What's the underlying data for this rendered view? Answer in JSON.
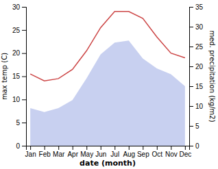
{
  "chart_data": {
    "type": "line",
    "xlabel": "date (month)",
    "ylabel": "max temp (C)",
    "y2label": "med. precipitation (kg/m2)",
    "categories": [
      "Jan",
      "Feb",
      "Mar",
      "Apr",
      "May",
      "Jun",
      "Jul",
      "Aug",
      "Sep",
      "Oct",
      "Nov",
      "Dec"
    ],
    "series": [
      {
        "type": "area",
        "color": "#c8d0f0",
        "axis": "y2",
        "values": [
          9.5,
          8.5,
          9.5,
          11.5,
          17.0,
          23.0,
          26.0,
          26.5,
          22.0,
          19.5,
          18.0,
          15.0
        ]
      },
      {
        "type": "line",
        "color": "#cc4444",
        "values": [
          15.5,
          14.0,
          14.5,
          16.5,
          20.5,
          25.5,
          29.0,
          29.0,
          27.5,
          23.5,
          20.0,
          19.0
        ]
      }
    ],
    "ylim": [
      0,
      30
    ],
    "yticks": [
      0,
      5,
      10,
      15,
      20,
      25,
      30
    ],
    "y2lim": [
      0,
      35
    ],
    "y2ticks": [
      0,
      5,
      10,
      15,
      20,
      25,
      30,
      35
    ],
    "grid": false
  }
}
